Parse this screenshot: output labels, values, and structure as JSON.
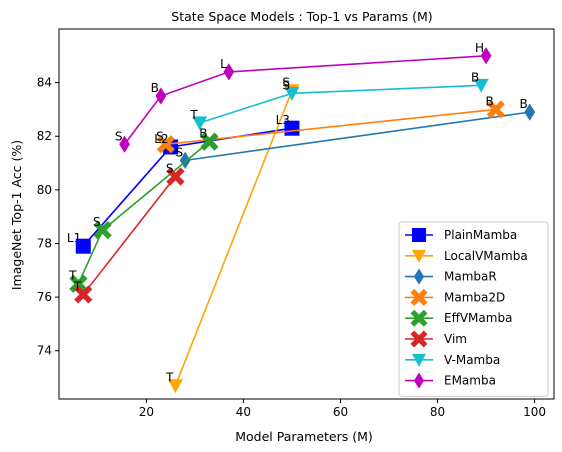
{
  "chart_data": {
    "type": "line",
    "title": "State Space  Models : Top-1 vs Params (M)",
    "xlabel": "Model Parameters (M)",
    "ylabel": "ImageNet Top-1 Acc (%)",
    "xlim": [
      2,
      104
    ],
    "ylim": [
      72.2,
      86.0
    ],
    "xticks": [
      20,
      40,
      60,
      80,
      100
    ],
    "yticks": [
      74,
      76,
      78,
      80,
      82,
      84
    ],
    "legend_position": "lower-right",
    "series": [
      {
        "name": "PlainMamba",
        "color": "#0000ff",
        "marker": "square",
        "x": [
          7,
          25,
          50
        ],
        "y": [
          77.9,
          81.6,
          82.3
        ],
        "labels": [
          "L1",
          "L2",
          "L3"
        ]
      },
      {
        "name": "LocalVMamba",
        "color": "#ffa500",
        "marker": "triangle-down",
        "x": [
          26,
          50
        ],
        "y": [
          72.7,
          83.7
        ],
        "labels": [
          "T",
          "S"
        ]
      },
      {
        "name": "MambaR",
        "color": "#1f77b4",
        "marker": "thin-diamond",
        "x": [
          28,
          99
        ],
        "y": [
          81.1,
          82.9
        ],
        "labels": [
          "S",
          "B"
        ]
      },
      {
        "name": "Mamba2D",
        "color": "#ff7f0e",
        "marker": "x",
        "x": [
          24,
          92
        ],
        "y": [
          81.7,
          83.0
        ],
        "labels": [
          "S",
          "B"
        ]
      },
      {
        "name": "EffVMamba",
        "color": "#2ca02c",
        "marker": "x",
        "x": [
          6,
          11,
          33
        ],
        "y": [
          76.5,
          78.5,
          81.8
        ],
        "labels": [
          "T",
          "S",
          "B"
        ]
      },
      {
        "name": "Vim",
        "color": "#d62728",
        "marker": "x",
        "x": [
          7,
          26
        ],
        "y": [
          76.1,
          80.5
        ],
        "labels": [
          "T",
          "S"
        ]
      },
      {
        "name": "V-Mamba",
        "color": "#17becf",
        "marker": "triangle-down",
        "x": [
          31,
          50,
          89
        ],
        "y": [
          82.5,
          83.6,
          83.9
        ],
        "labels": [
          "T",
          "S",
          "B"
        ]
      },
      {
        "name": "EMamba",
        "color": "#bf00bf",
        "marker": "thin-diamond",
        "x": [
          15.5,
          23,
          37,
          90
        ],
        "y": [
          81.7,
          83.5,
          84.4,
          85.0
        ],
        "labels": [
          "S",
          "B",
          "L",
          "H"
        ]
      }
    ]
  }
}
